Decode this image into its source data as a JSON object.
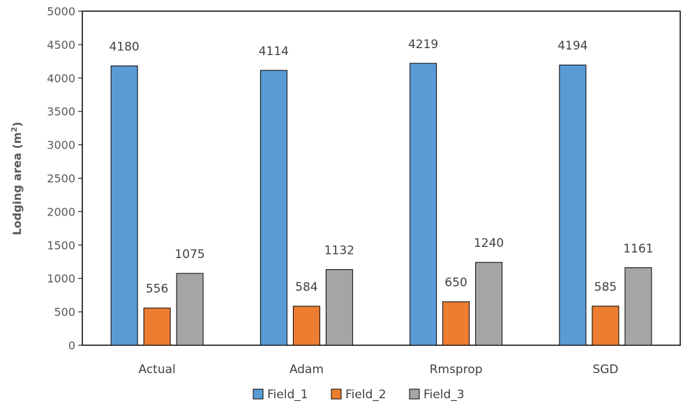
{
  "chart_data": {
    "type": "bar",
    "title": "",
    "xlabel": "",
    "ylabel": "Lodging area (m",
    "ylabel_sup": "2",
    "ylabel_close": ")",
    "ylim": [
      0,
      5000
    ],
    "ytick_step": 500,
    "yticks": [
      "0",
      "500",
      "1000",
      "1500",
      "2000",
      "2500",
      "3000",
      "3500",
      "4000",
      "4500",
      "5000"
    ],
    "categories": [
      "Actual",
      "Adam",
      "Rmsprop",
      "SGD"
    ],
    "series": [
      {
        "name": "Field_1",
        "color": "#5b9bd5",
        "values": [
          4180,
          4114,
          4219,
          4194
        ],
        "labels": [
          "4180",
          "4114",
          "4219",
          "4194"
        ]
      },
      {
        "name": "Field_2",
        "color": "#ed7d31",
        "values": [
          556,
          584,
          650,
          585
        ],
        "labels": [
          "556",
          "584",
          "650",
          "585"
        ]
      },
      {
        "name": "Field_3",
        "color": "#a5a5a5",
        "values": [
          1075,
          1132,
          1240,
          1161
        ],
        "labels": [
          "1075",
          "1132",
          "1240",
          "1161"
        ]
      }
    ],
    "legend_position": "bottom",
    "grid": false
  }
}
